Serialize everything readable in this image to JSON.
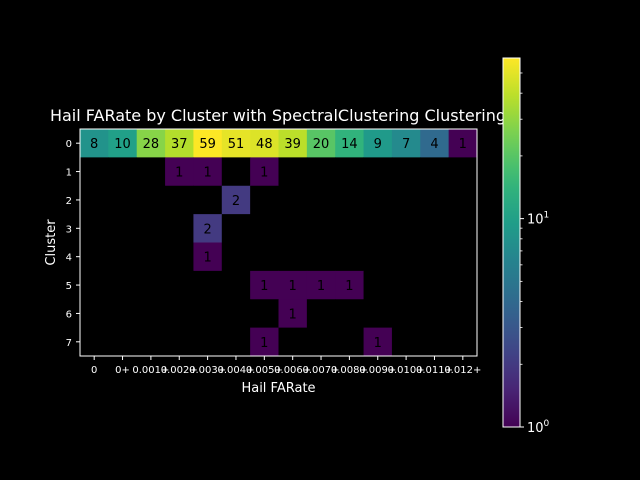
{
  "chart_data": {
    "type": "heatmap",
    "title": "Hail FARate by Cluster with SpectralClustering Clustering",
    "xlabel": "Hail FARate",
    "ylabel": "Cluster",
    "x_categories": [
      "0",
      "0+",
      "0.001+",
      "0.002+",
      "0.003+",
      "0.004+",
      "0.005+",
      "0.006+",
      "0.007+",
      "0.008+",
      "0.009+",
      "0.010+",
      "0.011+",
      "0.012+"
    ],
    "x_tick_labels_rendered": [
      "0",
      "0+",
      "0.001+",
      "0.002+",
      "0.003+",
      "0.004+",
      "0.005+",
      "0.006+",
      "0.007+",
      "0.008+",
      "0.009+",
      "0.010+",
      "0.011+",
      "0.012+"
    ],
    "y_categories": [
      "0",
      "1",
      "2",
      "3",
      "4",
      "5",
      "6",
      "7"
    ],
    "values": [
      [
        8,
        10,
        28,
        37,
        59,
        51,
        48,
        39,
        20,
        14,
        9,
        7,
        4,
        1
      ],
      [
        0,
        0,
        0,
        1,
        1,
        0,
        1,
        0,
        0,
        0,
        0,
        0,
        0,
        0
      ],
      [
        0,
        0,
        0,
        0,
        0,
        2,
        0,
        0,
        0,
        0,
        0,
        0,
        0,
        0
      ],
      [
        0,
        0,
        0,
        0,
        2,
        0,
        0,
        0,
        0,
        0,
        0,
        0,
        0,
        0
      ],
      [
        0,
        0,
        0,
        0,
        1,
        0,
        0,
        0,
        0,
        0,
        0,
        0,
        0,
        0
      ],
      [
        0,
        0,
        0,
        0,
        0,
        0,
        1,
        1,
        1,
        1,
        0,
        0,
        0,
        0
      ],
      [
        0,
        0,
        0,
        0,
        0,
        0,
        0,
        1,
        0,
        0,
        0,
        0,
        0,
        0
      ],
      [
        0,
        0,
        0,
        0,
        0,
        0,
        1,
        0,
        0,
        0,
        1,
        0,
        0,
        0
      ]
    ],
    "colorbar": {
      "scale": "log",
      "min": 1,
      "max": 59,
      "colormap": "viridis",
      "ticks": [
        "10^0",
        "10^1"
      ]
    },
    "background_color": "#000000",
    "text_color": "#ffffff",
    "cell_label_color": "#000000",
    "empty_cell_color": "#000000"
  }
}
